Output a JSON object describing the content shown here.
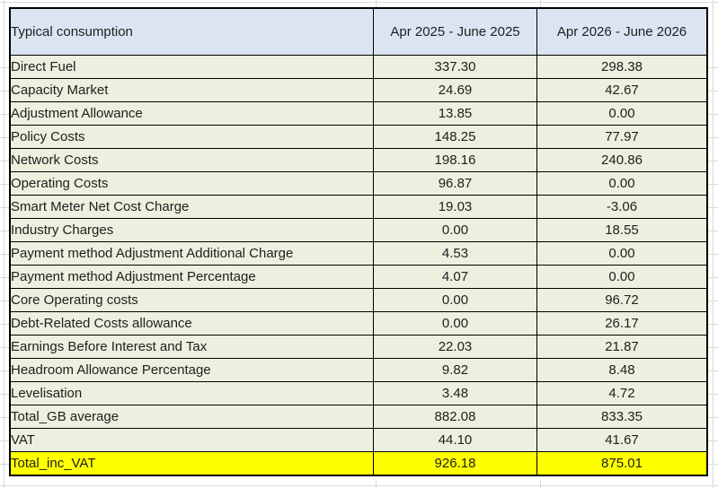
{
  "colors": {
    "header_bg": "#dbe5f1",
    "row_bg": "#ebf1de",
    "total_bg": "#ffff00",
    "border": "#000000",
    "gridline": "#d9d9d9",
    "text": "#202020"
  },
  "table": {
    "columns": [
      "Typical consumption",
      "Apr 2025 - June 2025",
      "Apr 2026 - June 2026"
    ],
    "rows": [
      {
        "label": "Direct Fuel",
        "v1": "337.30",
        "v2": "298.38"
      },
      {
        "label": "Capacity Market",
        "v1": "24.69",
        "v2": "42.67"
      },
      {
        "label": "Adjustment Allowance",
        "v1": "13.85",
        "v2": "0.00"
      },
      {
        "label": "Policy Costs",
        "v1": "148.25",
        "v2": "77.97"
      },
      {
        "label": "Network Costs",
        "v1": "198.16",
        "v2": "240.86"
      },
      {
        "label": "Operating Costs",
        "v1": "96.87",
        "v2": "0.00"
      },
      {
        "label": "Smart Meter Net Cost Charge",
        "v1": "19.03",
        "v2": "-3.06"
      },
      {
        "label": "Industry Charges",
        "v1": "0.00",
        "v2": "18.55"
      },
      {
        "label": "Payment method Adjustment Additional Charge",
        "v1": "4.53",
        "v2": "0.00"
      },
      {
        "label": "Payment method Adjustment Percentage",
        "v1": "4.07",
        "v2": "0.00"
      },
      {
        "label": "Core Operating costs",
        "v1": "0.00",
        "v2": "96.72"
      },
      {
        "label": "Debt-Related Costs allowance",
        "v1": "0.00",
        "v2": "26.17"
      },
      {
        "label": "Earnings Before Interest and Tax",
        "v1": "22.03",
        "v2": "21.87"
      },
      {
        "label": "Headroom Allowance Percentage",
        "v1": "9.82",
        "v2": "8.48"
      },
      {
        "label": "Levelisation",
        "v1": "3.48",
        "v2": "4.72"
      },
      {
        "label": "Total_GB average",
        "v1": "882.08",
        "v2": "833.35"
      },
      {
        "label": "VAT",
        "v1": "44.10",
        "v2": "41.67"
      },
      {
        "label": "Total_inc_VAT",
        "v1": "926.18",
        "v2": "875.01",
        "highlight": true
      }
    ]
  }
}
